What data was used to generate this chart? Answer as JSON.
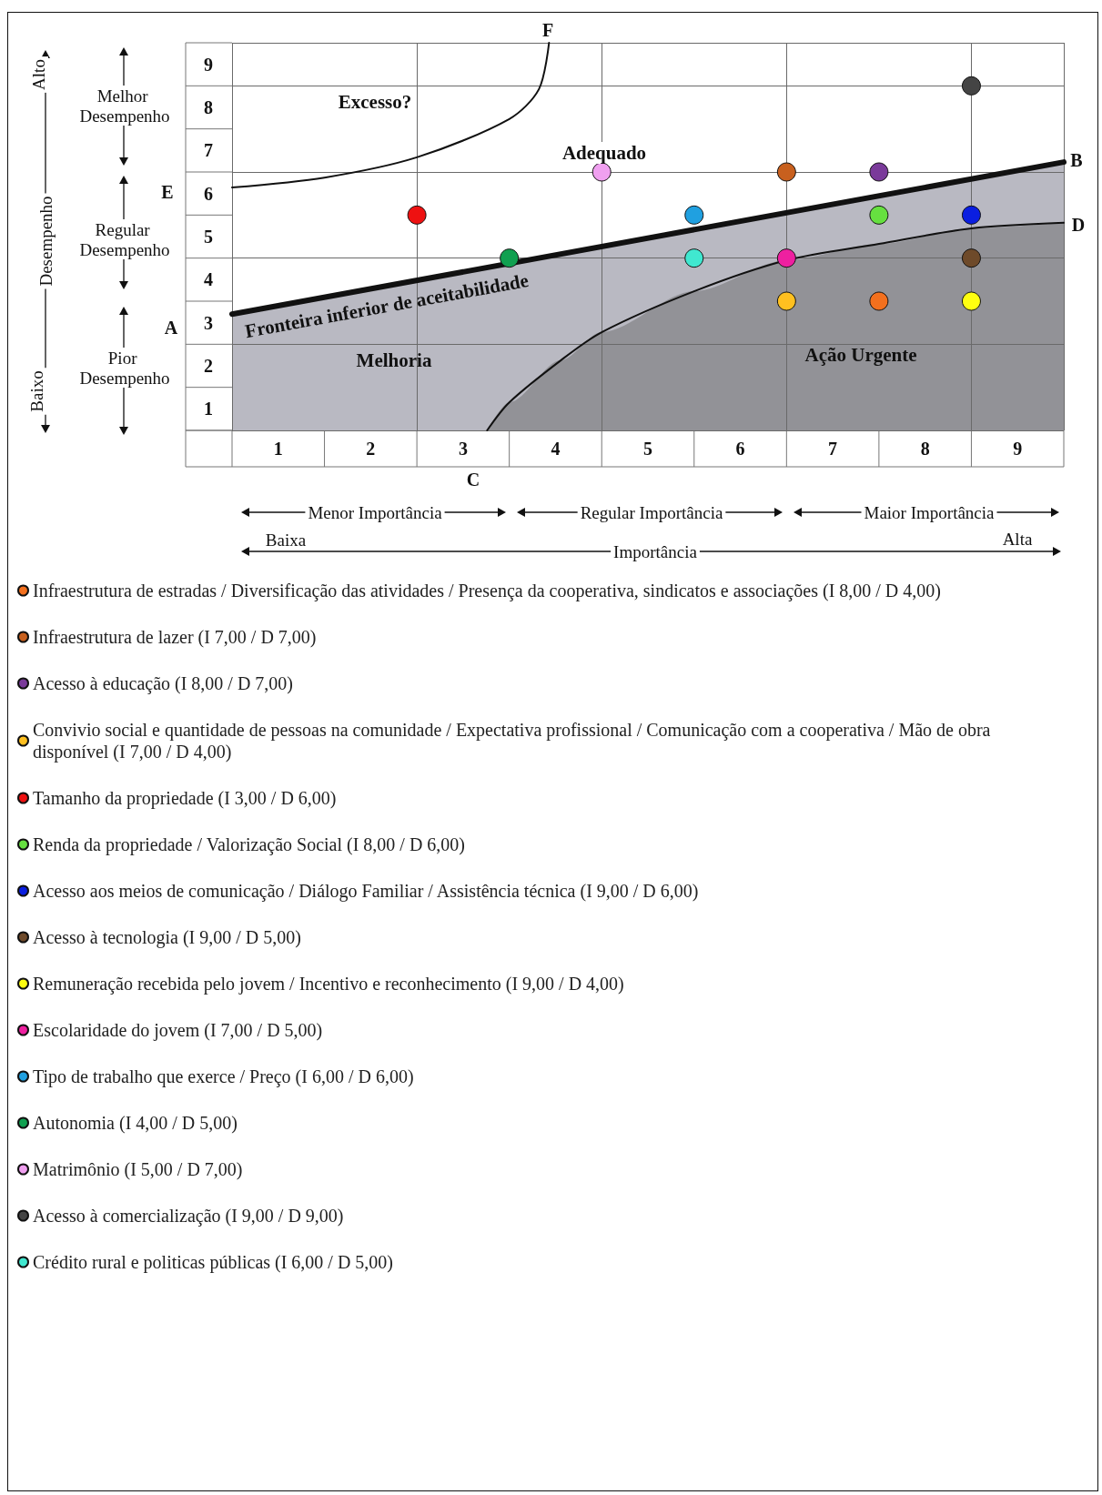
{
  "chart_data": {
    "type": "scatter",
    "xlabel": "Importância",
    "ylabel": "Desempenho",
    "xlim": [
      1,
      10
    ],
    "ylim": [
      1,
      10
    ],
    "xticks": [
      {
        "value": 1.5,
        "label": "1"
      },
      {
        "value": 2.5,
        "label": "2"
      },
      {
        "value": 3.5,
        "label": "3"
      },
      {
        "value": 4.5,
        "label": "4"
      },
      {
        "value": 5.5,
        "label": "5"
      },
      {
        "value": 6.5,
        "label": "6"
      },
      {
        "value": 7.5,
        "label": "7"
      },
      {
        "value": 8.5,
        "label": "8"
      },
      {
        "value": 9.5,
        "label": "9"
      }
    ],
    "yticks": [
      {
        "value": 1.5,
        "label": "1"
      },
      {
        "value": 2.5,
        "label": "2"
      },
      {
        "value": 3.5,
        "label": "3"
      },
      {
        "value": 4.5,
        "label": "4"
      },
      {
        "value": 5.5,
        "label": "5"
      },
      {
        "value": 6.5,
        "label": "6"
      },
      {
        "value": 7.5,
        "label": "7"
      },
      {
        "value": 8.5,
        "label": "8"
      },
      {
        "value": 9.5,
        "label": "9"
      }
    ],
    "grid": true,
    "legend": "bottom",
    "marker": "circle",
    "annotations": [
      "Excesso?",
      "Adequado",
      "Fronteira inferior de aceitabilidade",
      "Melhoria",
      "Ação Urgente",
      "A",
      "B",
      "C",
      "D",
      "E",
      "F",
      "Alto",
      "Baixo",
      "Melhor Desempenho",
      "Regular Desempenho",
      "Pior Desempenho",
      "Menor Importância",
      "Regular Importância",
      "Maior Importância",
      "Baixa",
      "Alta"
    ],
    "series": [
      {
        "type": "line",
        "color": "#111111",
        "marker": "none",
        "x": [
          1,
          2,
          3,
          4,
          4.32,
          4.43
        ],
        "values": [
          6.64,
          6.87,
          7.34,
          8.23,
          8.92,
          10
        ]
      },
      {
        "type": "area",
        "color": "#b9b9c2",
        "marker": "none",
        "x": [
          1,
          10
        ],
        "values": [
          3.7,
          7.23
        ]
      },
      {
        "type": "area",
        "color": "#929297",
        "marker": "none",
        "x": [
          3.76,
          4,
          4.56,
          5,
          6,
          7,
          8,
          9,
          10
        ],
        "values": [
          1,
          1.65,
          2.63,
          3.28,
          4.23,
          4.95,
          5.33,
          5.69,
          5.82
        ]
      },
      {
        "name": "Infraestrutura de estradas / Diversificação das atividades / Presença da cooperativa, sindicatos e associações (I 8,00 / D 4,00)",
        "color": "#f3701e",
        "x": [
          8
        ],
        "values": [
          4
        ]
      },
      {
        "name": "Infraestrutura de lazer (I 7,00 / D 7,00)",
        "color": "#c8601e",
        "x": [
          7
        ],
        "values": [
          7
        ]
      },
      {
        "name": "Acesso à educação (I 8,00 / D 7,00)",
        "color": "#7a3a9a",
        "x": [
          8
        ],
        "values": [
          7
        ]
      },
      {
        "name": "Convivio social e quantidade de pessoas na comunidade / Expectativa profissional / Comunicação com a cooperativa / Mão de obra disponível (I 7,00 / D 4,00)",
        "color": "#ffc020",
        "x": [
          7
        ],
        "values": [
          4
        ]
      },
      {
        "name": "Tamanho da propriedade (I 3,00 / D 6,00)",
        "color": "#ee1111",
        "x": [
          3
        ],
        "values": [
          6
        ]
      },
      {
        "name": "Renda da propriedade / Valorização Social (I 8,00 / D 6,00)",
        "color": "#66e040",
        "x": [
          8
        ],
        "values": [
          6
        ]
      },
      {
        "name": "Acesso aos meios de comunicação / Diálogo Familiar / Assistência técnica (I 9,00 / D 6,00)",
        "color": "#0a1ee0",
        "x": [
          9
        ],
        "values": [
          6
        ]
      },
      {
        "name": "Acesso à tecnologia (I 9,00 / D 5,00)",
        "color": "#6e4a2a",
        "x": [
          9
        ],
        "values": [
          5
        ]
      },
      {
        "name": "Remuneração recebida pelo jovem / Incentivo e reconhecimento (I 9,00 / D 4,00)",
        "color": "#ffff10",
        "x": [
          9
        ],
        "values": [
          4
        ]
      },
      {
        "name": "Escolaridade do jovem (I 7,00 / D 5,00)",
        "color": "#ee20a0",
        "x": [
          7
        ],
        "values": [
          5
        ]
      },
      {
        "name": "Tipo de trabalho que exerce / Preço (I 6,00 / D 6,00)",
        "color": "#20a0e0",
        "x": [
          6
        ],
        "values": [
          6
        ]
      },
      {
        "name": "Autonomia (I 4,00 / D 5,00)",
        "color": "#10a050",
        "x": [
          4
        ],
        "values": [
          5
        ]
      },
      {
        "name": "Matrimônio (I 5,00 / D 7,00)",
        "color": "#f0a0f0",
        "x": [
          5
        ],
        "values": [
          7
        ]
      },
      {
        "name": "Acesso à comercialização (I 9,00 / D 9,00)",
        "color": "#444444",
        "x": [
          9
        ],
        "values": [
          9
        ]
      },
      {
        "name": "Crédito rural e politicas públicas (I 6,00 / D 5,00)",
        "color": "#40e8d0",
        "x": [
          6
        ],
        "values": [
          5
        ]
      }
    ]
  }
}
